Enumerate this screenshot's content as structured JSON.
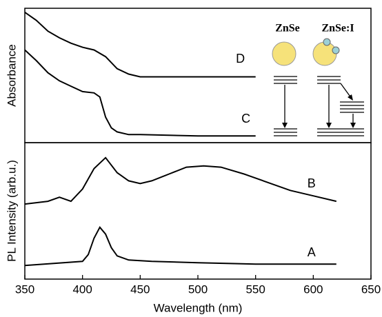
{
  "chart_data": [
    {
      "type": "line",
      "ylabel": "Absorbance",
      "xlim": [
        350,
        650
      ],
      "ylim": [
        0,
        1
      ],
      "grid": false,
      "series": [
        {
          "name": "D",
          "color": "#000000",
          "x": [
            350,
            360,
            370,
            380,
            390,
            400,
            410,
            420,
            430,
            440,
            450,
            475,
            500,
            525,
            550
          ],
          "values": [
            0.97,
            0.91,
            0.83,
            0.78,
            0.74,
            0.71,
            0.69,
            0.64,
            0.55,
            0.51,
            0.49,
            0.49,
            0.49,
            0.49,
            0.49
          ]
        },
        {
          "name": "C",
          "color": "#000000",
          "x": [
            350,
            360,
            370,
            380,
            390,
            400,
            410,
            415,
            420,
            425,
            430,
            440,
            450,
            500,
            550
          ],
          "values": [
            0.69,
            0.61,
            0.52,
            0.46,
            0.42,
            0.38,
            0.37,
            0.34,
            0.19,
            0.11,
            0.08,
            0.06,
            0.06,
            0.05,
            0.05
          ]
        }
      ],
      "annotations": [
        "ZnSe",
        "ZnSe:I"
      ]
    },
    {
      "type": "line",
      "ylabel": "PL Intensity (arb.u.)",
      "xlabel": "Wavelength (nm)",
      "xlim": [
        350,
        650
      ],
      "xticks": [
        350,
        400,
        450,
        500,
        550,
        600,
        650
      ],
      "ylim": [
        0,
        1
      ],
      "grid": false,
      "series": [
        {
          "name": "B",
          "color": "#000000",
          "x": [
            350,
            370,
            380,
            390,
            400,
            410,
            420,
            430,
            440,
            450,
            460,
            475,
            490,
            505,
            520,
            540,
            560,
            580,
            600,
            620
          ],
          "values": [
            0.55,
            0.57,
            0.6,
            0.57,
            0.66,
            0.81,
            0.89,
            0.78,
            0.72,
            0.7,
            0.72,
            0.77,
            0.82,
            0.83,
            0.82,
            0.77,
            0.71,
            0.65,
            0.61,
            0.57
          ]
        },
        {
          "name": "A",
          "color": "#000000",
          "x": [
            350,
            400,
            405,
            410,
            415,
            420,
            425,
            430,
            440,
            460,
            500,
            550,
            620
          ],
          "values": [
            0.1,
            0.13,
            0.18,
            0.3,
            0.38,
            0.33,
            0.23,
            0.17,
            0.14,
            0.13,
            0.12,
            0.11,
            0.11
          ]
        }
      ]
    }
  ]
}
